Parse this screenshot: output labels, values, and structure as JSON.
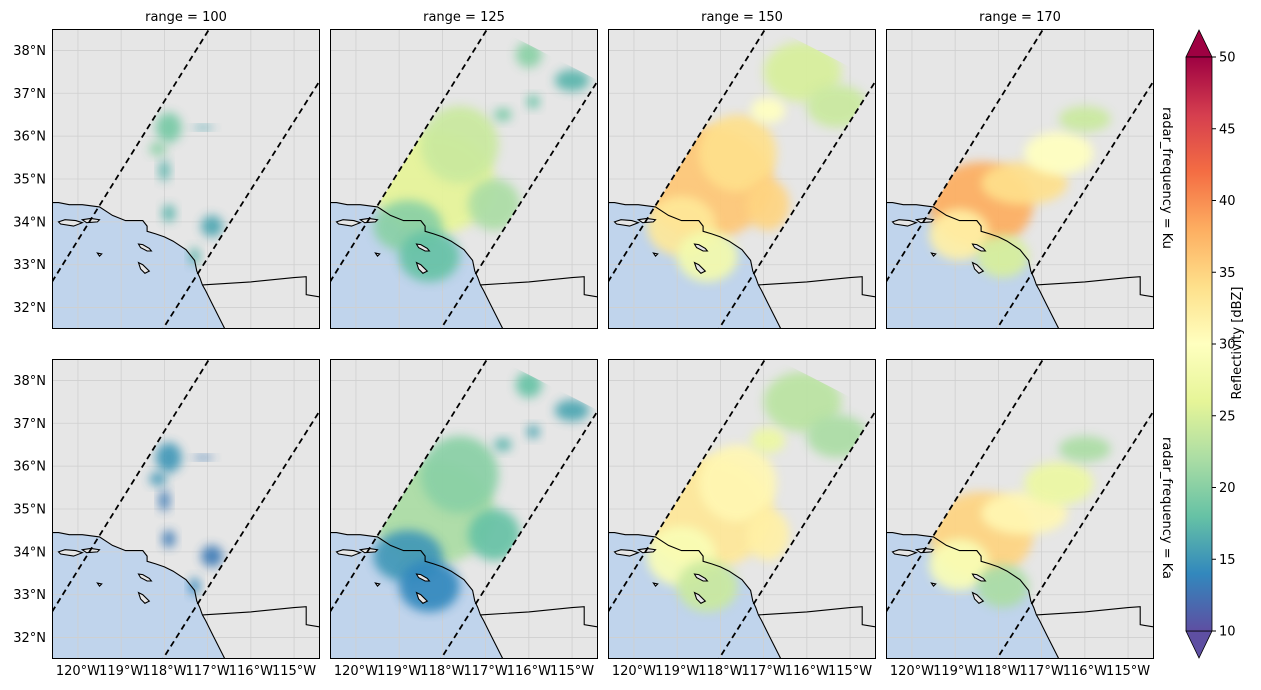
{
  "chart_data": {
    "type": "heatmap",
    "title": "",
    "panel_titles": [
      "range = 100",
      "range = 125",
      "range = 150",
      "range = 170"
    ],
    "row_labels": [
      "radar_frequency = Ku",
      "radar_frequency = Ka"
    ],
    "colorbar": {
      "label": "Reflectivity [dBZ]",
      "vmin": 10,
      "vmax": 50,
      "ticks": [
        "10",
        "15",
        "20",
        "25",
        "30",
        "35",
        "40",
        "45",
        "50"
      ],
      "extend": "both",
      "colormap": "Spectral_r",
      "colors": [
        "#5e4fa2",
        "#3288bd",
        "#66c2a5",
        "#abdda4",
        "#e6f598",
        "#ffffbf",
        "#fee08b",
        "#fdae61",
        "#f46d43",
        "#d53e4f",
        "#9e0142"
      ]
    },
    "x_axis": {
      "range": [
        -120.6,
        -114.4
      ],
      "tick_values": [
        -120,
        -119,
        -118,
        -117,
        -116,
        -115
      ],
      "tick_labels": [
        "120°W",
        "119°W",
        "118°W",
        "117°W",
        "116°W",
        "115°W"
      ]
    },
    "y_axis": {
      "range": [
        31.5,
        38.5
      ],
      "tick_values": [
        32,
        33,
        34,
        35,
        36,
        37,
        38
      ],
      "tick_labels": [
        "32°N",
        "33°N",
        "34°N",
        "35°N",
        "36°N",
        "37°N",
        "38°N"
      ]
    },
    "swath_edges": [
      {
        "lon1": -120.6,
        "lat1": 32.6,
        "lon2": -116.9,
        "lat2": 38.6
      },
      {
        "lon1": -118.1,
        "lat1": 31.4,
        "lon2": -114.4,
        "lat2": 37.3
      }
    ],
    "coastline": [
      [
        -120.6,
        34.45
      ],
      [
        -120.45,
        34.45
      ],
      [
        -120.2,
        34.4
      ],
      [
        -119.9,
        34.4
      ],
      [
        -119.5,
        34.35
      ],
      [
        -119.2,
        34.15
      ],
      [
        -118.9,
        34.03
      ],
      [
        -118.5,
        34.03
      ],
      [
        -118.4,
        33.9
      ],
      [
        -118.4,
        33.78
      ],
      [
        -118.2,
        33.72
      ],
      [
        -118.0,
        33.65
      ],
      [
        -117.8,
        33.55
      ],
      [
        -117.5,
        33.35
      ],
      [
        -117.3,
        33.1
      ],
      [
        -117.25,
        32.85
      ],
      [
        -117.18,
        32.7
      ],
      [
        -117.12,
        32.53
      ],
      [
        -117.05,
        32.4
      ],
      [
        -116.9,
        32.1
      ],
      [
        -116.75,
        31.8
      ],
      [
        -116.6,
        31.5
      ]
    ],
    "border": [
      [
        -117.12,
        32.53
      ],
      [
        -116.0,
        32.6
      ],
      [
        -115.0,
        32.7
      ],
      [
        -114.72,
        32.72
      ],
      [
        -114.72,
        32.3
      ],
      [
        -114.4,
        32.25
      ]
    ],
    "islands": [
      [
        [
          -120.45,
          34.0
        ],
        [
          -120.3,
          34.05
        ],
        [
          -120.05,
          34.03
        ],
        [
          -119.9,
          33.98
        ],
        [
          -120.1,
          33.9
        ],
        [
          -120.4,
          33.95
        ],
        [
          -120.45,
          34.0
        ]
      ],
      [
        [
          -119.9,
          34.05
        ],
        [
          -119.7,
          34.08
        ],
        [
          -119.5,
          34.05
        ],
        [
          -119.55,
          34.0
        ],
        [
          -119.8,
          33.98
        ],
        [
          -119.9,
          34.05
        ]
      ],
      [
        [
          -119.55,
          33.27
        ],
        [
          -119.45,
          33.25
        ],
        [
          -119.5,
          33.2
        ],
        [
          -119.55,
          33.27
        ]
      ],
      [
        [
          -118.6,
          33.48
        ],
        [
          -118.5,
          33.47
        ],
        [
          -118.35,
          33.38
        ],
        [
          -118.3,
          33.32
        ],
        [
          -118.4,
          33.32
        ],
        [
          -118.55,
          33.4
        ],
        [
          -118.6,
          33.48
        ]
      ],
      [
        [
          -118.6,
          33.05
        ],
        [
          -118.5,
          33.0
        ],
        [
          -118.35,
          32.85
        ],
        [
          -118.45,
          32.8
        ],
        [
          -118.55,
          32.9
        ],
        [
          -118.6,
          33.05
        ]
      ]
    ],
    "rain_series": [
      {
        "name": "Ku / range 100",
        "cells": [
          {
            "lon": -117.9,
            "lat": 36.2,
            "rx": 0.3,
            "ry": 0.35,
            "value": 19
          },
          {
            "lon": -118.0,
            "lat": 35.2,
            "rx": 0.12,
            "ry": 0.25,
            "value": 17
          },
          {
            "lon": -118.15,
            "lat": 35.7,
            "rx": 0.2,
            "ry": 0.15,
            "value": 20
          },
          {
            "lon": -117.1,
            "lat": 36.2,
            "rx": 0.25,
            "ry": 0.05,
            "value": 16
          },
          {
            "lon": -117.9,
            "lat": 34.2,
            "rx": 0.15,
            "ry": 0.2,
            "value": 17
          },
          {
            "lon": -116.9,
            "lat": 33.9,
            "rx": 0.25,
            "ry": 0.25,
            "value": 16
          },
          {
            "lon": -117.3,
            "lat": 33.2,
            "rx": 0.12,
            "ry": 0.2,
            "value": 17
          }
        ]
      },
      {
        "name": "Ku / range 125",
        "cells": [
          {
            "lon": -118.2,
            "lat": 34.9,
            "rx": 1.4,
            "ry": 1.2,
            "value": 26
          },
          {
            "lon": -117.6,
            "lat": 35.8,
            "rx": 0.9,
            "ry": 0.9,
            "value": 24
          },
          {
            "lon": -118.8,
            "lat": 33.9,
            "rx": 0.8,
            "ry": 0.6,
            "value": 20
          },
          {
            "lon": -118.3,
            "lat": 33.2,
            "rx": 0.7,
            "ry": 0.6,
            "value": 18
          },
          {
            "lon": -116.8,
            "lat": 34.4,
            "rx": 0.6,
            "ry": 0.6,
            "value": 22
          },
          {
            "lon": -116.0,
            "lat": 37.9,
            "rx": 0.3,
            "ry": 0.3,
            "value": 20
          },
          {
            "lon": -115.0,
            "lat": 37.3,
            "rx": 0.4,
            "ry": 0.25,
            "value": 17
          },
          {
            "lon": -115.9,
            "lat": 36.8,
            "rx": 0.15,
            "ry": 0.15,
            "value": 18
          },
          {
            "lon": -116.6,
            "lat": 36.5,
            "rx": 0.2,
            "ry": 0.15,
            "value": 19
          }
        ]
      },
      {
        "name": "Ku / range 150",
        "cells": [
          {
            "lon": -118.3,
            "lat": 34.9,
            "rx": 1.5,
            "ry": 1.3,
            "value": 36
          },
          {
            "lon": -117.6,
            "lat": 35.6,
            "rx": 0.9,
            "ry": 0.9,
            "value": 34
          },
          {
            "lon": -118.9,
            "lat": 33.9,
            "rx": 0.8,
            "ry": 0.7,
            "value": 33
          },
          {
            "lon": -118.3,
            "lat": 33.2,
            "rx": 0.7,
            "ry": 0.6,
            "value": 28
          },
          {
            "lon": -116.9,
            "lat": 34.4,
            "rx": 0.5,
            "ry": 0.6,
            "value": 35
          },
          {
            "lon": -116.1,
            "lat": 37.5,
            "rx": 0.9,
            "ry": 0.7,
            "value": 25
          },
          {
            "lon": -115.3,
            "lat": 36.7,
            "rx": 0.7,
            "ry": 0.5,
            "value": 24
          },
          {
            "lon": -116.9,
            "lat": 36.6,
            "rx": 0.4,
            "ry": 0.3,
            "value": 30
          }
        ]
      },
      {
        "name": "Ku / range 170",
        "cells": [
          {
            "lon": -118.4,
            "lat": 34.4,
            "rx": 1.2,
            "ry": 1.0,
            "value": 38
          },
          {
            "lon": -117.4,
            "lat": 34.9,
            "rx": 1.0,
            "ry": 0.5,
            "value": 34
          },
          {
            "lon": -118.9,
            "lat": 33.7,
            "rx": 0.7,
            "ry": 0.6,
            "value": 32
          },
          {
            "lon": -117.9,
            "lat": 33.2,
            "rx": 0.6,
            "ry": 0.5,
            "value": 25
          },
          {
            "lon": -116.6,
            "lat": 35.6,
            "rx": 0.8,
            "ry": 0.5,
            "value": 30
          },
          {
            "lon": -116.0,
            "lat": 36.4,
            "rx": 0.6,
            "ry": 0.3,
            "value": 24
          }
        ]
      },
      {
        "name": "Ka / range 100",
        "cells": [
          {
            "lon": -117.9,
            "lat": 36.2,
            "rx": 0.3,
            "ry": 0.35,
            "value": 15
          },
          {
            "lon": -118.0,
            "lat": 35.2,
            "rx": 0.12,
            "ry": 0.25,
            "value": 13
          },
          {
            "lon": -118.15,
            "lat": 35.7,
            "rx": 0.2,
            "ry": 0.15,
            "value": 15
          },
          {
            "lon": -117.1,
            "lat": 36.2,
            "rx": 0.25,
            "ry": 0.05,
            "value": 13
          },
          {
            "lon": -117.9,
            "lat": 34.3,
            "rx": 0.15,
            "ry": 0.2,
            "value": 13
          },
          {
            "lon": -116.9,
            "lat": 33.9,
            "rx": 0.25,
            "ry": 0.25,
            "value": 13
          },
          {
            "lon": -117.3,
            "lat": 33.2,
            "rx": 0.12,
            "ry": 0.2,
            "value": 14
          }
        ]
      },
      {
        "name": "Ka / range 125",
        "cells": [
          {
            "lon": -118.2,
            "lat": 34.9,
            "rx": 1.4,
            "ry": 1.2,
            "value": 22
          },
          {
            "lon": -117.6,
            "lat": 35.8,
            "rx": 0.9,
            "ry": 0.9,
            "value": 20
          },
          {
            "lon": -118.8,
            "lat": 33.9,
            "rx": 0.8,
            "ry": 0.6,
            "value": 15
          },
          {
            "lon": -118.3,
            "lat": 33.2,
            "rx": 0.7,
            "ry": 0.6,
            "value": 14
          },
          {
            "lon": -116.8,
            "lat": 34.4,
            "rx": 0.6,
            "ry": 0.6,
            "value": 18
          },
          {
            "lon": -116.0,
            "lat": 37.9,
            "rx": 0.3,
            "ry": 0.3,
            "value": 18
          },
          {
            "lon": -115.0,
            "lat": 37.3,
            "rx": 0.4,
            "ry": 0.25,
            "value": 16
          },
          {
            "lon": -115.9,
            "lat": 36.8,
            "rx": 0.15,
            "ry": 0.15,
            "value": 16
          },
          {
            "lon": -116.6,
            "lat": 36.5,
            "rx": 0.2,
            "ry": 0.15,
            "value": 17
          }
        ]
      },
      {
        "name": "Ka / range 150",
        "cells": [
          {
            "lon": -118.3,
            "lat": 34.9,
            "rx": 1.5,
            "ry": 1.3,
            "value": 33
          },
          {
            "lon": -117.6,
            "lat": 35.6,
            "rx": 0.9,
            "ry": 0.9,
            "value": 31
          },
          {
            "lon": -118.9,
            "lat": 33.9,
            "rx": 0.8,
            "ry": 0.7,
            "value": 29
          },
          {
            "lon": -118.3,
            "lat": 33.2,
            "rx": 0.7,
            "ry": 0.6,
            "value": 24
          },
          {
            "lon": -116.9,
            "lat": 34.4,
            "rx": 0.5,
            "ry": 0.6,
            "value": 32
          },
          {
            "lon": -116.1,
            "lat": 37.5,
            "rx": 0.9,
            "ry": 0.7,
            "value": 23
          },
          {
            "lon": -115.3,
            "lat": 36.7,
            "rx": 0.7,
            "ry": 0.5,
            "value": 22
          },
          {
            "lon": -116.9,
            "lat": 36.6,
            "rx": 0.4,
            "ry": 0.3,
            "value": 27
          }
        ]
      },
      {
        "name": "Ka / range 170",
        "cells": [
          {
            "lon": -118.4,
            "lat": 34.4,
            "rx": 1.2,
            "ry": 1.0,
            "value": 35
          },
          {
            "lon": -117.4,
            "lat": 34.9,
            "rx": 1.0,
            "ry": 0.5,
            "value": 31
          },
          {
            "lon": -118.9,
            "lat": 33.7,
            "rx": 0.7,
            "ry": 0.6,
            "value": 29
          },
          {
            "lon": -117.9,
            "lat": 33.2,
            "rx": 0.6,
            "ry": 0.5,
            "value": 22
          },
          {
            "lon": -116.6,
            "lat": 35.6,
            "rx": 0.8,
            "ry": 0.5,
            "value": 27
          },
          {
            "lon": -116.0,
            "lat": 36.4,
            "rx": 0.6,
            "ry": 0.3,
            "value": 22
          }
        ]
      }
    ]
  },
  "colors": {
    "land": "#e6e6e6",
    "ocean": "#c0d4ec",
    "grid": "#cfcfcf",
    "frame": "#000000"
  }
}
